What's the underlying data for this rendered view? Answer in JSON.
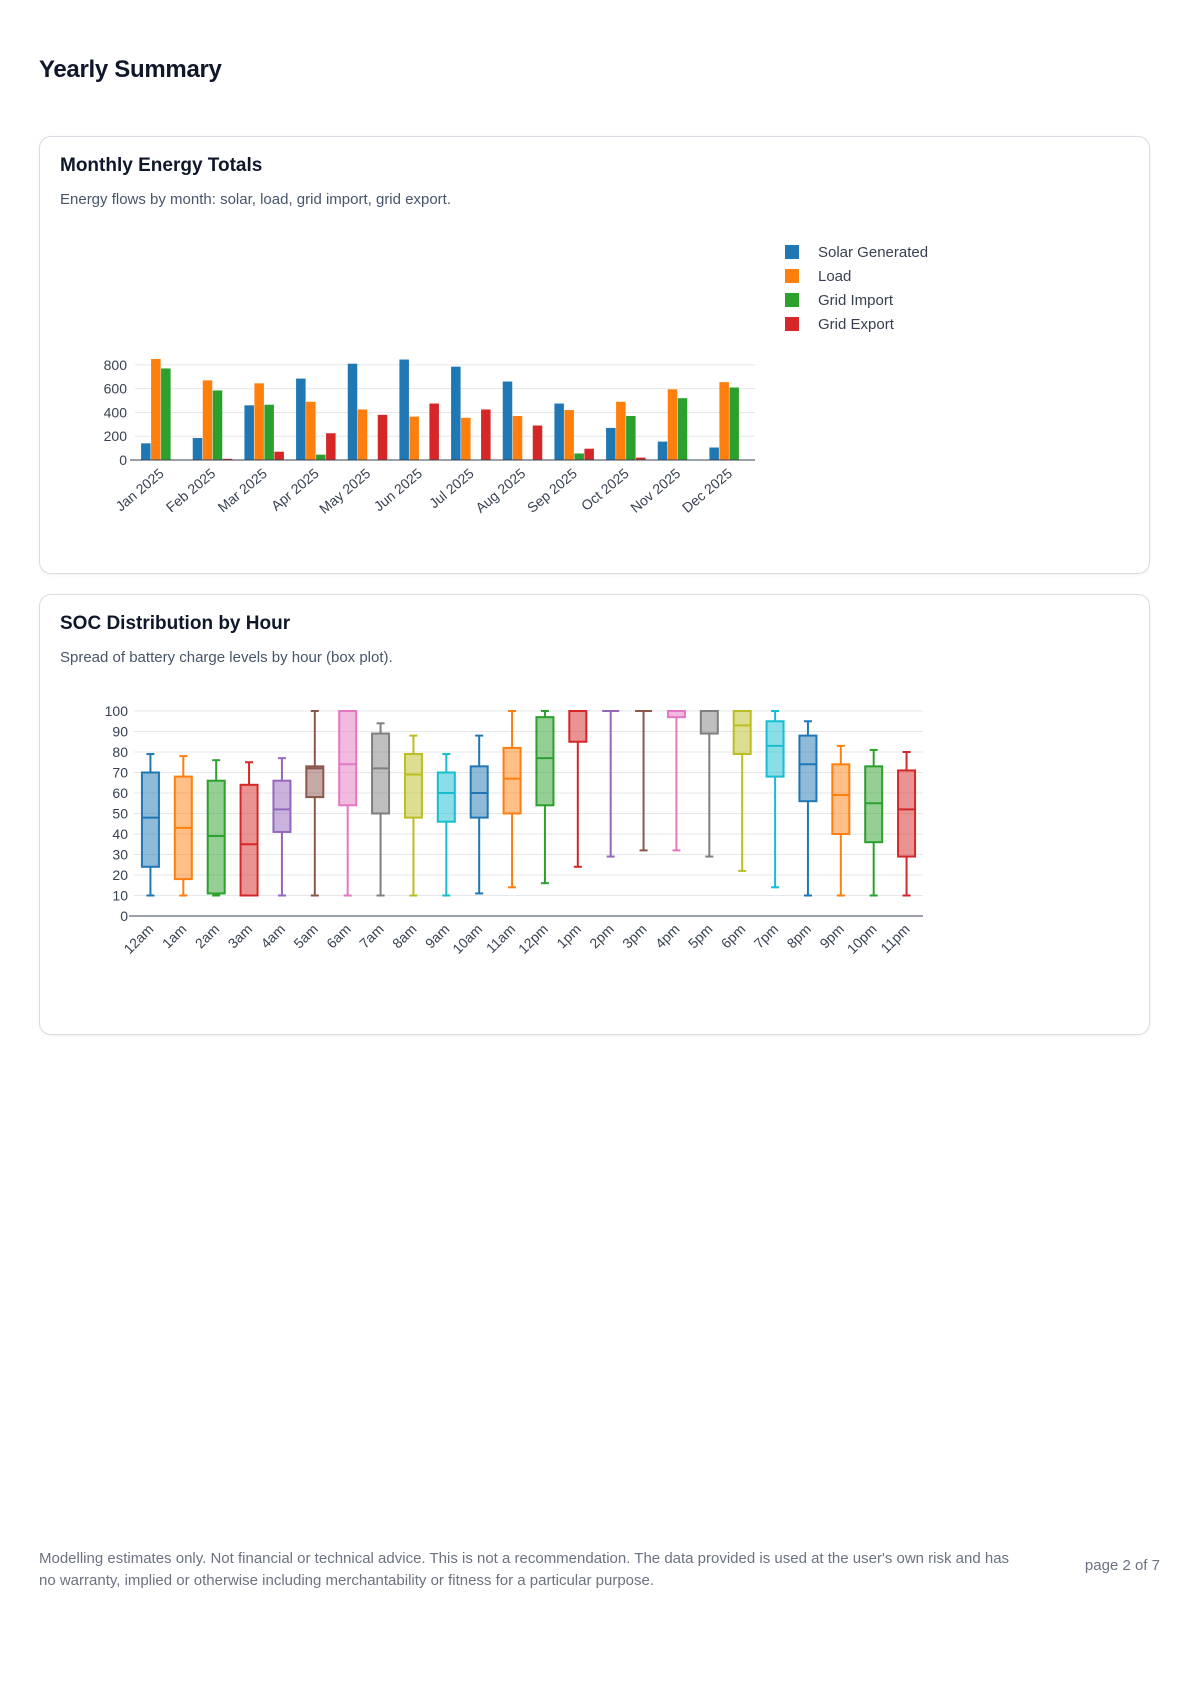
{
  "page": {
    "title": "Yearly Summary",
    "footer": "Modelling estimates only. Not financial or technical advice. This is not a recommendation. The data provided is used at the user's own risk and has no warranty, implied or otherwise including merchantability or fitness for a particular purpose.",
    "page_number": "page 2 of 7"
  },
  "cards": {
    "energy": {
      "title": "Monthly Energy Totals",
      "subtitle": "Energy flows by month: solar, load, grid import, grid export."
    },
    "soc": {
      "title": "SOC Distribution by Hour",
      "subtitle": "Spread of battery charge levels by hour (box plot)."
    }
  },
  "chart_data": [
    {
      "type": "bar",
      "categories": [
        "Jan 2025",
        "Feb 2025",
        "Mar 2025",
        "Apr 2025",
        "May 2025",
        "Jun 2025",
        "Jul 2025",
        "Aug 2025",
        "Sep 2025",
        "Oct 2025",
        "Nov 2025",
        "Dec 2025"
      ],
      "series": [
        {
          "name": "Solar Generated",
          "color": "#1f77b4",
          "values": [
            140,
            185,
            460,
            685,
            810,
            845,
            785,
            660,
            475,
            270,
            155,
            105
          ]
        },
        {
          "name": "Load",
          "color": "#ff7f0e",
          "values": [
            850,
            670,
            645,
            490,
            425,
            365,
            355,
            370,
            420,
            490,
            595,
            655
          ]
        },
        {
          "name": "Grid Import",
          "color": "#2ca02c",
          "values": [
            770,
            585,
            465,
            45,
            0,
            0,
            0,
            0,
            55,
            370,
            520,
            610
          ]
        },
        {
          "name": "Grid Export",
          "color": "#d62728",
          "values": [
            0,
            10,
            70,
            225,
            380,
            475,
            425,
            290,
            95,
            20,
            0,
            0
          ]
        }
      ],
      "yticks": [
        0,
        200,
        400,
        600,
        800
      ],
      "ylim": [
        0,
        900
      ],
      "grid": true,
      "legend": "right"
    },
    {
      "type": "box",
      "categories": [
        "12am",
        "1am",
        "2am",
        "3am",
        "4am",
        "5am",
        "6am",
        "7am",
        "8am",
        "9am",
        "10am",
        "11am",
        "12pm",
        "1pm",
        "2pm",
        "3pm",
        "4pm",
        "5pm",
        "6pm",
        "7pm",
        "8pm",
        "9pm",
        "10pm",
        "11pm"
      ],
      "colors": [
        "#1f77b4",
        "#ff7f0e",
        "#2ca02c",
        "#d62728",
        "#9467bd",
        "#8c564b",
        "#e377c2",
        "#7f7f7f",
        "#bcbd22",
        "#17becf"
      ],
      "boxes": [
        {
          "min": 10,
          "q1": 24,
          "median": 48,
          "q3": 70,
          "max": 79
        },
        {
          "min": 10,
          "q1": 18,
          "median": 43,
          "q3": 68,
          "max": 78
        },
        {
          "min": 10,
          "q1": 11,
          "median": 39,
          "q3": 66,
          "max": 76
        },
        {
          "min": 10,
          "q1": 10,
          "median": 35,
          "q3": 64,
          "max": 75
        },
        {
          "min": 10,
          "q1": 41,
          "median": 52,
          "q3": 66,
          "max": 77
        },
        {
          "min": 10,
          "q1": 58,
          "median": 72,
          "q3": 73,
          "max": 100
        },
        {
          "min": 10,
          "q1": 54,
          "median": 74,
          "q3": 100,
          "max": 100
        },
        {
          "min": 10,
          "q1": 50,
          "median": 72,
          "q3": 89,
          "max": 94
        },
        {
          "min": 10,
          "q1": 48,
          "median": 69,
          "q3": 79,
          "max": 88
        },
        {
          "min": 10,
          "q1": 46,
          "median": 60,
          "q3": 70,
          "max": 79
        },
        {
          "min": 11,
          "q1": 48,
          "median": 60,
          "q3": 73,
          "max": 88
        },
        {
          "min": 14,
          "q1": 50,
          "median": 67,
          "q3": 82,
          "max": 100
        },
        {
          "min": 16,
          "q1": 54,
          "median": 77,
          "q3": 97,
          "max": 100
        },
        {
          "min": 24,
          "q1": 85,
          "median": 100,
          "q3": 100,
          "max": 100
        },
        {
          "min": 29,
          "q1": 100,
          "median": 100,
          "q3": 100,
          "max": 100
        },
        {
          "min": 32,
          "q1": 100,
          "median": 100,
          "q3": 100,
          "max": 100
        },
        {
          "min": 32,
          "q1": 97,
          "median": 100,
          "q3": 100,
          "max": 100
        },
        {
          "min": 29,
          "q1": 89,
          "median": 100,
          "q3": 100,
          "max": 100
        },
        {
          "min": 22,
          "q1": 79,
          "median": 93,
          "q3": 100,
          "max": 100
        },
        {
          "min": 14,
          "q1": 68,
          "median": 83,
          "q3": 95,
          "max": 100
        },
        {
          "min": 10,
          "q1": 56,
          "median": 74,
          "q3": 88,
          "max": 95
        },
        {
          "min": 10,
          "q1": 40,
          "median": 59,
          "q3": 74,
          "max": 83
        },
        {
          "min": 10,
          "q1": 36,
          "median": 55,
          "q3": 73,
          "max": 81
        },
        {
          "min": 10,
          "q1": 29,
          "median": 52,
          "q3": 71,
          "max": 80
        }
      ],
      "yticks": [
        0,
        10,
        20,
        30,
        40,
        50,
        60,
        70,
        80,
        90,
        100
      ],
      "ylim": [
        0,
        100
      ],
      "grid": true
    }
  ]
}
